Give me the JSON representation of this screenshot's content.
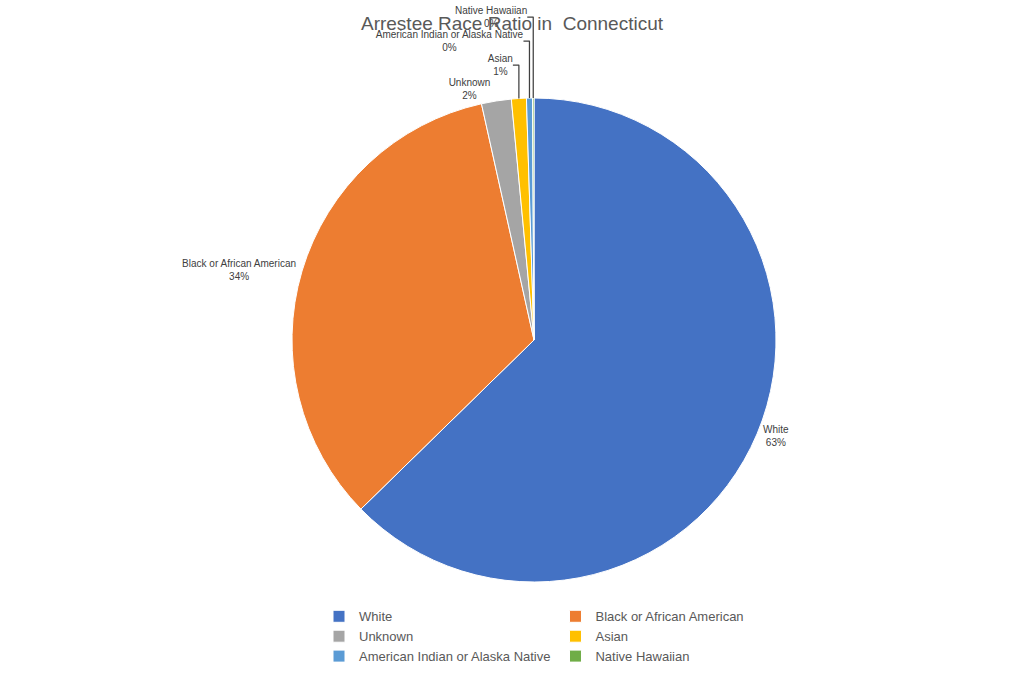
{
  "chart_data": {
    "type": "pie",
    "title": "Arrestee Race Ratio in  Connecticut",
    "categories": [
      "White",
      "Black or African American",
      "Unknown",
      "Asian",
      "American Indian or Alaska Native",
      "Native Hawaiian"
    ],
    "values": [
      63,
      34,
      2,
      1,
      0.4,
      0.1
    ],
    "value_labels": [
      "63%",
      "34%",
      "2%",
      "1%",
      "0%",
      "0%"
    ],
    "colors": [
      "#4472c4",
      "#ed7d31",
      "#a5a5a5",
      "#ffc000",
      "#5b9bd5",
      "#70ad47"
    ],
    "data_labels": true,
    "legend": "bottom"
  }
}
